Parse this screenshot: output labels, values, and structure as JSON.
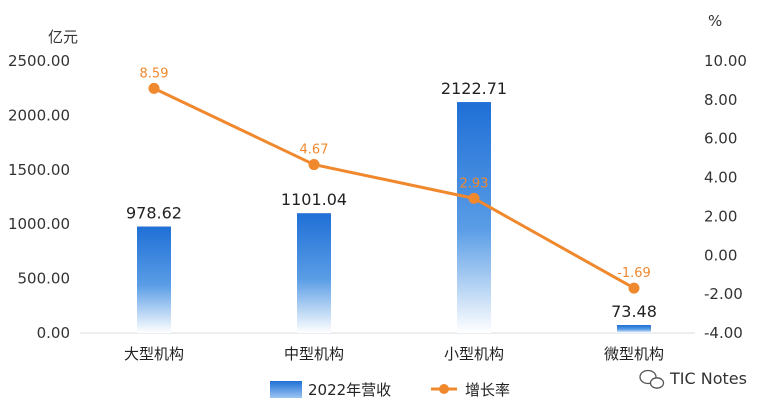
{
  "chart_data": {
    "type": "bar",
    "categories": [
      "大型机构",
      "中型机构",
      "小型机构",
      "微型机构"
    ],
    "series": [
      {
        "name": "2022年营收",
        "type": "bar",
        "axis": "left",
        "values": [
          978.62,
          1101.04,
          2122.71,
          73.48
        ],
        "labels": [
          "978.62",
          "1101.04",
          "2122.71",
          "73.48"
        ]
      },
      {
        "name": "增长率",
        "type": "line",
        "axis": "right",
        "values": [
          8.59,
          4.67,
          2.93,
          -1.69
        ],
        "labels": [
          "8.59",
          "4.67",
          "2.93",
          "-1.69"
        ]
      }
    ],
    "y_left": {
      "unit": "亿元",
      "ylim": [
        0,
        2500
      ],
      "ticks": [
        "0.00",
        "500.00",
        "1000.00",
        "1500.00",
        "2000.00",
        "2500.00"
      ]
    },
    "y_right": {
      "unit": "%",
      "ylim": [
        -4,
        10
      ],
      "ticks": [
        "-4.00",
        "-2.00",
        "0.00",
        "2.00",
        "4.00",
        "6.00",
        "8.00",
        "10.00"
      ]
    },
    "legend_position": "bottom-center",
    "grid": false,
    "colors": {
      "bar_top": "#1f6fd6",
      "bar_bottom": "#ffffff",
      "line": "#f0882e",
      "axis": "#dddddd"
    }
  },
  "watermark": {
    "icon": "wechat-icon",
    "text": "TIC Notes"
  }
}
